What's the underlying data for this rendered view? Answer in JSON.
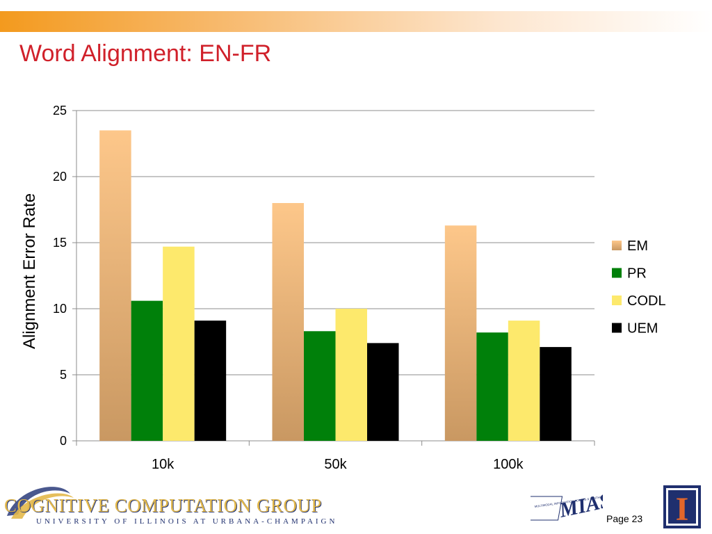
{
  "slide": {
    "title": "Word Alignment: EN-FR",
    "page_label": "Page 23",
    "footer_group_name": "COGNITIVE COMPUTATION GROUP",
    "footer_university": "UNIVERSITY OF ILLINOIS AT URBANA-CHAMPAIGN",
    "mias_logo_text": "MIAS",
    "mias_small_text": "MULTIMODAL INFORMATION ACCESS & SYNTHESIS",
    "illinois_logo_letter": "I"
  },
  "colors": {
    "title_red": "#d0202a",
    "band_orange": "#f39a1e",
    "em_top": "#fdc78a",
    "em_bottom": "#c99862",
    "pr": "#00800a",
    "codl": "#fde96c",
    "uem": "#000000",
    "illinois_blue": "#1f2f6e",
    "illinois_orange": "#e2662a"
  },
  "chart_data": {
    "type": "bar",
    "categories": [
      "10k",
      "50k",
      "100k"
    ],
    "series": [
      {
        "name": "EM",
        "values": [
          23.5,
          18.0,
          16.3
        ]
      },
      {
        "name": "PR",
        "values": [
          10.6,
          8.3,
          8.2
        ]
      },
      {
        "name": "CODL",
        "values": [
          14.7,
          10.0,
          9.1
        ]
      },
      {
        "name": "UEM",
        "values": [
          9.1,
          7.4,
          7.1
        ]
      }
    ],
    "xlabel": "",
    "ylabel": "Alignment Error Rate",
    "ylim": [
      0,
      25
    ],
    "yticks": [
      0,
      5,
      10,
      15,
      20,
      25
    ],
    "grid": true,
    "legend": "right"
  }
}
